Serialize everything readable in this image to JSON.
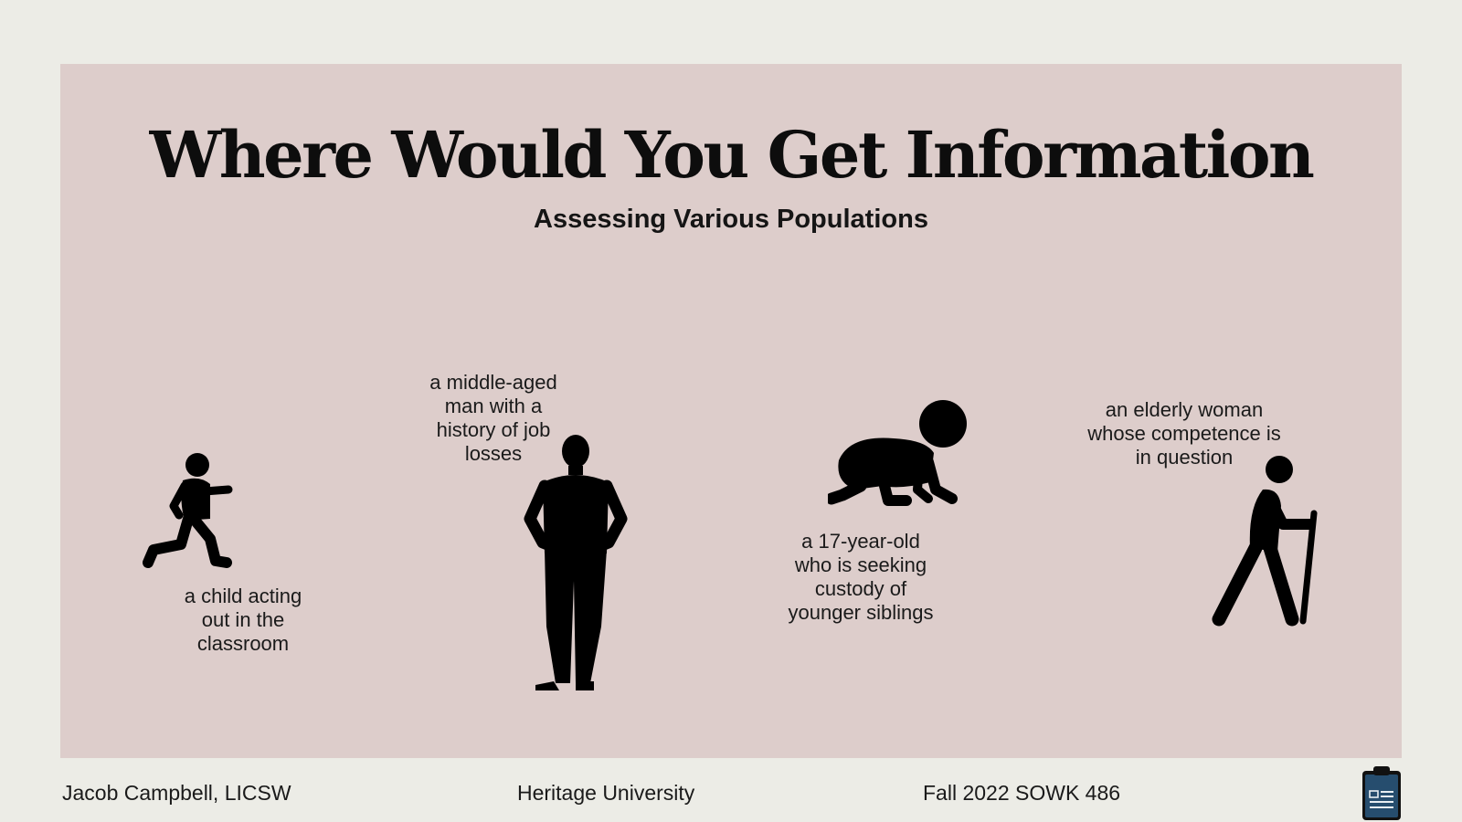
{
  "slide": {
    "title": "Where Would You Get Information",
    "subtitle": "Assessing Various Populations"
  },
  "figures": {
    "child": {
      "lines": [
        "a child acting",
        "out in the",
        "classroom"
      ],
      "icon": "running-child-icon"
    },
    "man": {
      "lines": [
        "a middle-aged",
        "man with a",
        "history of job",
        "losses"
      ],
      "icon": "standing-man-icon"
    },
    "teen": {
      "lines": [
        "a 17-year-old",
        "who is seeking",
        "custody of",
        "younger siblings"
      ],
      "icon": "crawling-baby-icon"
    },
    "elder": {
      "lines": [
        "an elderly woman",
        "whose competence is",
        "in question"
      ],
      "icon": "elderly-person-with-cane-icon"
    }
  },
  "footer": {
    "author": "Jacob Campbell, LICSW",
    "institution": "Heritage University",
    "course": "Fall 2022 SOWK 486",
    "icon": "clipboard-icon"
  },
  "colors": {
    "page_background": "#ecece6",
    "panel_background": "#ddcdcb",
    "text": "#111111",
    "clipboard": "#264d6e"
  }
}
